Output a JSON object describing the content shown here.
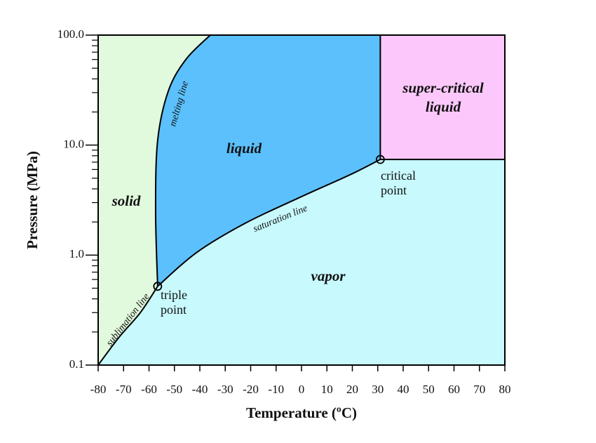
{
  "chart_data": {
    "type": "phase-diagram",
    "xlabel": "Temperature (ºC)",
    "ylabel": "Pressure (MPa)",
    "xlim": [
      -80,
      80
    ],
    "ylim": [
      0.1,
      100
    ],
    "ylog": true,
    "xticks": [
      -80,
      -70,
      -60,
      -50,
      -40,
      -30,
      -20,
      -10,
      0,
      10,
      20,
      30,
      40,
      50,
      60,
      70,
      80
    ],
    "yticks": [
      {
        "value": 0.1,
        "label": "0.1"
      },
      {
        "value": 1,
        "label": "1.0"
      },
      {
        "value": 10,
        "label": "10.0"
      },
      {
        "value": 100,
        "label": "100.0"
      }
    ],
    "yminorticks": [
      0.2,
      0.3,
      0.4,
      0.5,
      0.6,
      0.7,
      0.8,
      0.9,
      2,
      3,
      4,
      5,
      6,
      7,
      8,
      9,
      20,
      30,
      40,
      50,
      60,
      70,
      80,
      90
    ],
    "series": [
      {
        "name": "sublimation line",
        "color": "#000000",
        "x": [
          -80,
          -71.7,
          -63.4,
          -56.6
        ],
        "y": [
          0.1,
          0.18,
          0.3,
          0.52
        ]
      },
      {
        "name": "melting line",
        "color": "#000000",
        "x": [
          -56.6,
          -57.4,
          -56.6,
          -52.4,
          -45.5,
          -35.9
        ],
        "y": [
          0.52,
          2.5,
          11,
          31,
          60,
          100
        ]
      },
      {
        "name": "saturation line",
        "color": "#000000",
        "x": [
          -56.6,
          -41.4,
          -22.1,
          0,
          19.3,
          31
        ],
        "y": [
          0.52,
          1.05,
          1.95,
          3.4,
          5.4,
          7.4
        ]
      }
    ],
    "points": [
      {
        "label": [
          "triple",
          "point"
        ],
        "x": -56.6,
        "y": 0.52
      },
      {
        "label": [
          "critical",
          "point"
        ],
        "x": 31,
        "y": 7.4
      }
    ],
    "regions": [
      {
        "label": [
          "solid"
        ],
        "color": "#e1f9dc"
      },
      {
        "label": [
          "liquid"
        ],
        "color": "#5bc0fb"
      },
      {
        "label": [
          "vapor"
        ],
        "color": "#c8f9fd"
      },
      {
        "label": [
          "super-critical",
          "liquid"
        ],
        "color": "#fcc8fb"
      }
    ]
  }
}
